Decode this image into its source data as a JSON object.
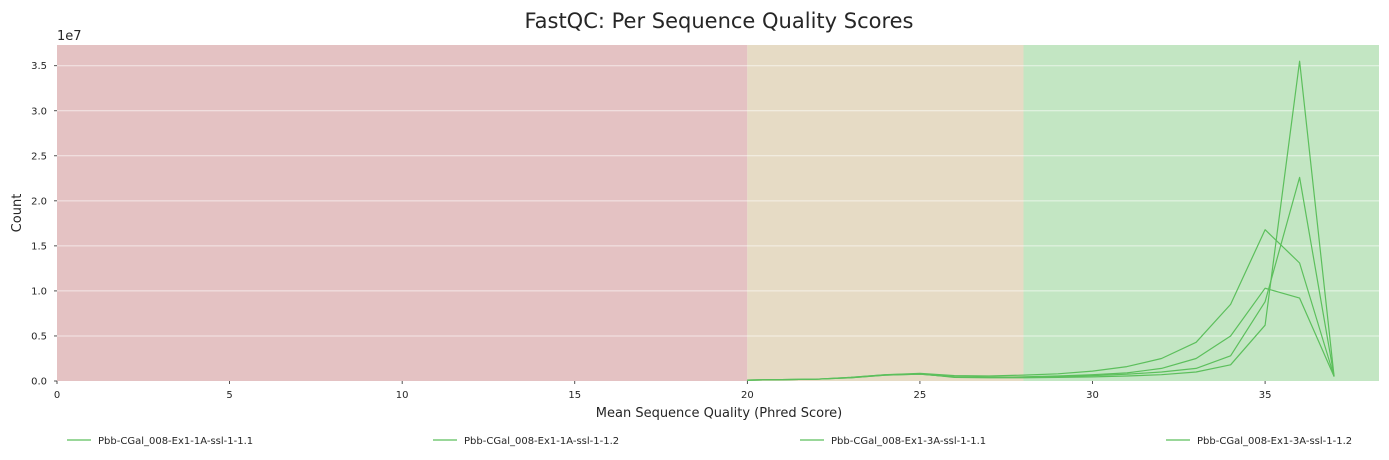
{
  "chart_data": {
    "type": "line",
    "title": "FastQC: Per Sequence Quality Scores",
    "xlabel": "Mean Sequence Quality (Phred Score)",
    "ylabel": "Count",
    "y_offset_label": "1e7",
    "xlim": [
      0,
      38.3
    ],
    "ylim": [
      0,
      3.73
    ],
    "x_ticks": [
      0,
      5,
      10,
      15,
      20,
      25,
      30,
      35
    ],
    "y_ticks": [
      0,
      0.5,
      1.0,
      1.5,
      2.0,
      2.5,
      3.0,
      3.5
    ],
    "y_tick_labels": [
      "0.0",
      "0.5",
      "1.0",
      "1.5",
      "2.0",
      "2.5",
      "3.0",
      "3.5"
    ],
    "grid": true,
    "legend_position": "bottom",
    "background_bands": [
      {
        "from": 0,
        "to": 20,
        "color": "#e4c2c3"
      },
      {
        "from": 20,
        "to": 28,
        "color": "#e6dbc5"
      },
      {
        "from": 28,
        "to": 38.3,
        "color": "#c3e6c3"
      }
    ],
    "line_color": "#5cbf5c",
    "x": [
      20,
      21,
      22,
      23,
      24,
      25,
      26,
      27,
      28,
      29,
      30,
      31,
      32,
      33,
      34,
      35,
      36,
      37
    ],
    "series": [
      {
        "name": "Pbb-CGal_008-Ex1-1A-ssl-1-1.1",
        "values": [
          0.01,
          0.015,
          0.02,
          0.04,
          0.07,
          0.08,
          0.04,
          0.035,
          0.035,
          0.04,
          0.045,
          0.055,
          0.07,
          0.1,
          0.18,
          0.62,
          3.55,
          0.05
        ]
      },
      {
        "name": "Pbb-CGal_008-Ex1-1A-ssl-1-1.2",
        "values": [
          0.01,
          0.015,
          0.02,
          0.04,
          0.07,
          0.085,
          0.06,
          0.055,
          0.065,
          0.08,
          0.11,
          0.16,
          0.25,
          0.43,
          0.85,
          1.68,
          1.31,
          0.05
        ]
      },
      {
        "name": "Pbb-CGal_008-Ex1-3A-ssl-1-1.1",
        "values": [
          0.01,
          0.015,
          0.02,
          0.035,
          0.065,
          0.075,
          0.045,
          0.04,
          0.045,
          0.055,
          0.07,
          0.09,
          0.14,
          0.25,
          0.5,
          1.03,
          0.92,
          0.05
        ]
      },
      {
        "name": "Pbb-CGal_008-Ex1-3A-ssl-1-1.2",
        "values": [
          0.01,
          0.015,
          0.02,
          0.035,
          0.065,
          0.075,
          0.045,
          0.04,
          0.04,
          0.05,
          0.06,
          0.075,
          0.1,
          0.14,
          0.28,
          0.88,
          2.26,
          0.05
        ]
      }
    ]
  }
}
